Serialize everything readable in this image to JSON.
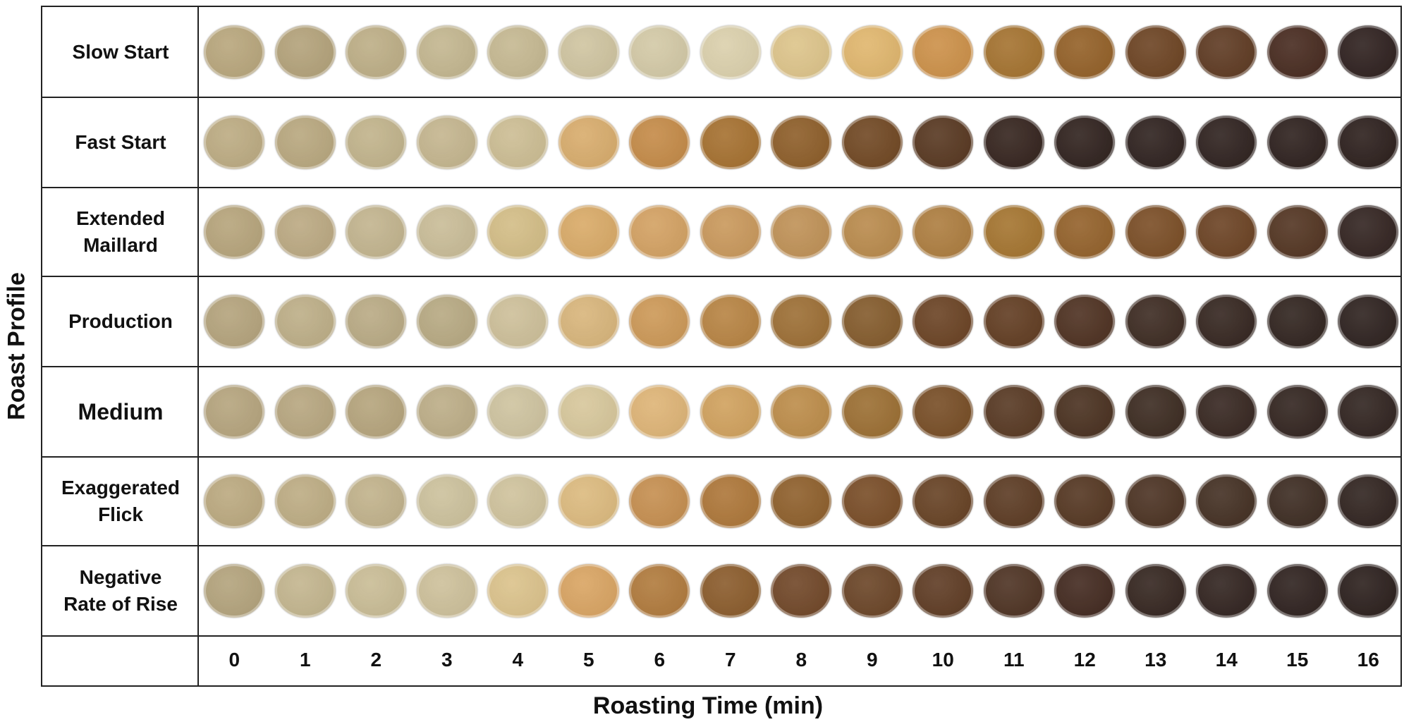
{
  "chart_data": {
    "type": "table",
    "xlabel": "Roasting Time (min)",
    "ylabel": "Roast Profile",
    "x": [
      "0",
      "1",
      "2",
      "3",
      "4",
      "5",
      "6",
      "7",
      "8",
      "9",
      "10",
      "11",
      "12",
      "13",
      "14",
      "15",
      "16"
    ],
    "rows": [
      {
        "label": "Slow Start",
        "colors": [
          "#b8a67c",
          "#b3a27a",
          "#bdae86",
          "#c3b68f",
          "#c5b891",
          "#cfc4a0",
          "#d3c9a6",
          "#dbd0ac",
          "#ddc48a",
          "#e0b66d",
          "#cc9048",
          "#a4722f",
          "#936027",
          "#6c4322",
          "#5e3a22",
          "#472a1f",
          "#2e201e"
        ]
      },
      {
        "label": "Fast Start",
        "colors": [
          "#bcab82",
          "#b8a77e",
          "#c1b38b",
          "#c4b58e",
          "#ccbd93",
          "#d8ac6c",
          "#c48a47",
          "#a5702f",
          "#8d5d28",
          "#704722",
          "#573720",
          "#34231d",
          "#2f211d",
          "#2e211e",
          "#2e211e",
          "#2d201d",
          "#2c1f1c"
        ]
      },
      {
        "label": "Extended\nMaillard",
        "colors": [
          "#b6a47b",
          "#bba982",
          "#c2b48e",
          "#c9bc97",
          "#d3bd86",
          "#d9aa67",
          "#d3a162",
          "#c9985b",
          "#bf9156",
          "#b98a4c",
          "#ad7d3f",
          "#a4742f",
          "#93612a",
          "#7a4d25",
          "#6b4223",
          "#523421",
          "#322320"
        ]
      },
      {
        "label": "Production",
        "colors": [
          "#b4a37c",
          "#bdae87",
          "#b9aa84",
          "#b7a982",
          "#cdbf99",
          "#d8b57b",
          "#cc9856",
          "#b78342",
          "#9c6e34",
          "#835a2b",
          "#6a4223",
          "#613c21",
          "#4d3020",
          "#3c2a21",
          "#34251f",
          "#30231e",
          "#2d211e"
        ]
      },
      {
        "label": "Medium",
        "colors": [
          "#b5a47d",
          "#b7a67f",
          "#b5a47c",
          "#bcad87",
          "#cec39f",
          "#d7c79b",
          "#deb476",
          "#d0a15d",
          "#bc8c49",
          "#9b6e32",
          "#774d25",
          "#573822",
          "#49301f",
          "#3b2a20",
          "#362620",
          "#32241f",
          "#30231f"
        ]
      },
      {
        "label": "Exaggerated\nFlick",
        "colors": [
          "#bba97f",
          "#bdac83",
          "#c1b28b",
          "#ccc19c",
          "#cfc29c",
          "#dcba7e",
          "#c58e4f",
          "#ad7638",
          "#8e5f2b",
          "#784c26",
          "#664123",
          "#5b3a22",
          "#543621",
          "#4b3222",
          "#432f22",
          "#3c2b21",
          "#30231f"
        ]
      },
      {
        "label": "Negative\nRate of Rise",
        "colors": [
          "#b3a37c",
          "#c3b58e",
          "#c9bc95",
          "#cdc09a",
          "#dbc28b",
          "#d9a462",
          "#b07a3c",
          "#8a5b2b",
          "#704627",
          "#6a4426",
          "#5e3b23",
          "#4d3222",
          "#42291f",
          "#34251f",
          "#31231f",
          "#2e211e",
          "#2b1f1c"
        ]
      }
    ]
  }
}
